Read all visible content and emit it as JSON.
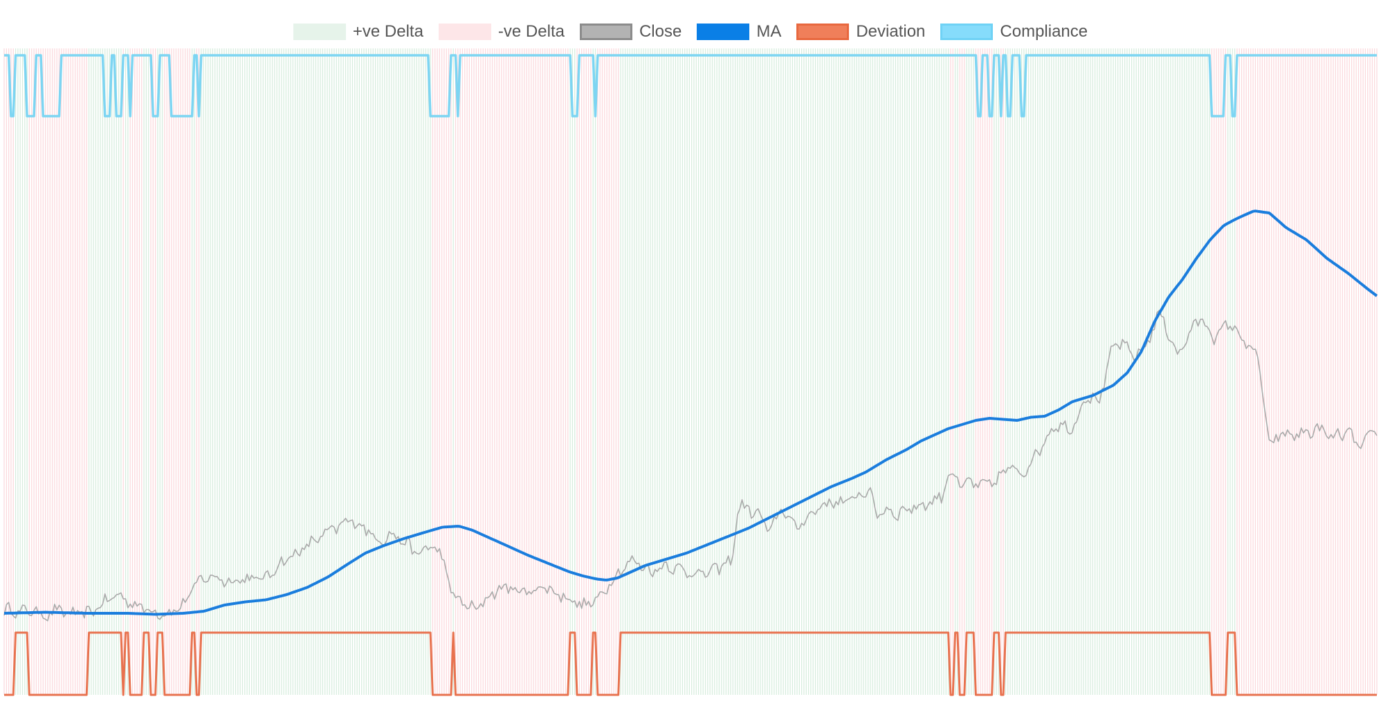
{
  "chart_data": {
    "type": "line",
    "title": "",
    "xlabel": "",
    "ylabel": "",
    "n_points": 600,
    "legend": {
      "position": "top-center",
      "items": [
        {
          "key": "pos",
          "label": "+ve Delta",
          "fill": "#e6f3ea",
          "stroke": "#e6f3ea"
        },
        {
          "key": "neg",
          "label": "-ve Delta",
          "fill": "#fde6e8",
          "stroke": "#fde6e8"
        },
        {
          "key": "close",
          "label": "Close",
          "fill": "#b3b3b3",
          "stroke": "#8c8c8c"
        },
        {
          "key": "ma",
          "label": "MA",
          "fill": "#0a7fe6",
          "stroke": "#0a7fe6"
        },
        {
          "key": "dev",
          "label": "Deviation",
          "fill": "#f07f5a",
          "stroke": "#e8683f"
        },
        {
          "key": "comp",
          "label": "Compliance",
          "fill": "#86dcfb",
          "stroke": "#6fd2f5"
        }
      ]
    },
    "colors": {
      "pos_band": "#d5ecdc",
      "neg_band": "#fbd7db",
      "close": "#a9a9a9",
      "ma": "#1a7ddd",
      "deviation": "#e8724f",
      "compliance": "#7dd5f2"
    },
    "close_keyframes": [
      [
        0,
        2
      ],
      [
        6,
        4
      ],
      [
        12,
        1
      ],
      [
        20,
        3
      ],
      [
        30,
        -2
      ],
      [
        38,
        3
      ],
      [
        50,
        -1
      ],
      [
        62,
        0
      ],
      [
        72,
        10
      ],
      [
        82,
        18
      ],
      [
        95,
        8
      ],
      [
        106,
        3
      ],
      [
        118,
        -1
      ],
      [
        130,
        8
      ],
      [
        140,
        30
      ],
      [
        150,
        36
      ],
      [
        162,
        31
      ],
      [
        175,
        33
      ],
      [
        190,
        34
      ],
      [
        200,
        48
      ],
      [
        215,
        60
      ],
      [
        225,
        70
      ],
      [
        235,
        78
      ],
      [
        245,
        85
      ],
      [
        252,
        90
      ],
      [
        262,
        82
      ],
      [
        272,
        70
      ],
      [
        280,
        76
      ],
      [
        290,
        70
      ],
      [
        300,
        56
      ],
      [
        310,
        66
      ],
      [
        318,
        54
      ],
      [
        325,
        18
      ],
      [
        335,
        8
      ],
      [
        342,
        3
      ],
      [
        350,
        14
      ],
      [
        360,
        25
      ],
      [
        370,
        23
      ],
      [
        380,
        20
      ],
      [
        390,
        26
      ],
      [
        400,
        20
      ],
      [
        410,
        14
      ],
      [
        420,
        7
      ],
      [
        430,
        12
      ],
      [
        440,
        31
      ],
      [
        452,
        48
      ],
      [
        458,
        50
      ],
      [
        470,
        40
      ],
      [
        480,
        47
      ],
      [
        495,
        40
      ],
      [
        510,
        38
      ],
      [
        518,
        44
      ],
      [
        528,
        50
      ],
      [
        533,
        105
      ],
      [
        540,
        100
      ],
      [
        548,
        95
      ],
      [
        555,
        78
      ],
      [
        565,
        103
      ],
      [
        573,
        82
      ],
      [
        580,
        89
      ],
      [
        590,
        101
      ],
      [
        600,
        108
      ],
      [
        608,
        106
      ],
      [
        618,
        112
      ],
      [
        627,
        120
      ],
      [
        633,
        96
      ],
      [
        640,
        100
      ],
      [
        648,
        96
      ],
      [
        653,
        100
      ],
      [
        660,
        102
      ],
      [
        670,
        106
      ],
      [
        680,
        112
      ],
      [
        685,
        135
      ],
      [
        690,
        132
      ],
      [
        695,
        120
      ],
      [
        700,
        128
      ],
      [
        707,
        122
      ],
      [
        720,
        128
      ],
      [
        728,
        140
      ],
      [
        740,
        136
      ],
      [
        755,
        166
      ],
      [
        762,
        182
      ],
      [
        775,
        178
      ],
      [
        785,
        210
      ],
      [
        795,
        205
      ],
      [
        804,
        255
      ],
      [
        811,
        262
      ],
      [
        818,
        248
      ],
      [
        828,
        256
      ],
      [
        838,
        290
      ],
      [
        845,
        270
      ],
      [
        852,
        248
      ],
      [
        860,
        270
      ],
      [
        868,
        285
      ],
      [
        878,
        266
      ],
      [
        890,
        280
      ],
      [
        898,
        265
      ],
      [
        910,
        246
      ],
      [
        918,
        160
      ],
      [
        925,
        172
      ],
      [
        935,
        172
      ],
      [
        945,
        174
      ],
      [
        955,
        178
      ],
      [
        961,
        170
      ],
      [
        966,
        170
      ],
      [
        975,
        175
      ],
      [
        983,
        160
      ],
      [
        990,
        168
      ],
      [
        996,
        178
      ]
    ],
    "ma_keyframes": [
      [
        0,
        0
      ],
      [
        30,
        1
      ],
      [
        60,
        0
      ],
      [
        90,
        0
      ],
      [
        110,
        -1
      ],
      [
        130,
        0
      ],
      [
        145,
        2
      ],
      [
        160,
        8
      ],
      [
        175,
        11
      ],
      [
        190,
        13
      ],
      [
        205,
        18
      ],
      [
        220,
        25
      ],
      [
        235,
        35
      ],
      [
        250,
        48
      ],
      [
        262,
        58
      ],
      [
        275,
        65
      ],
      [
        290,
        72
      ],
      [
        305,
        78
      ],
      [
        318,
        83
      ],
      [
        330,
        84
      ],
      [
        340,
        80
      ],
      [
        350,
        74
      ],
      [
        365,
        65
      ],
      [
        380,
        56
      ],
      [
        395,
        48
      ],
      [
        410,
        40
      ],
      [
        420,
        36
      ],
      [
        430,
        33
      ],
      [
        437,
        32
      ],
      [
        445,
        34
      ],
      [
        455,
        40
      ],
      [
        465,
        46
      ],
      [
        480,
        52
      ],
      [
        495,
        58
      ],
      [
        510,
        66
      ],
      [
        525,
        74
      ],
      [
        540,
        82
      ],
      [
        555,
        92
      ],
      [
        570,
        102
      ],
      [
        585,
        112
      ],
      [
        600,
        122
      ],
      [
        615,
        130
      ],
      [
        625,
        136
      ],
      [
        640,
        148
      ],
      [
        655,
        158
      ],
      [
        665,
        166
      ],
      [
        675,
        172
      ],
      [
        685,
        178
      ],
      [
        695,
        182
      ],
      [
        705,
        186
      ],
      [
        715,
        188
      ],
      [
        725,
        187
      ],
      [
        735,
        186
      ],
      [
        745,
        189
      ],
      [
        755,
        190
      ],
      [
        765,
        196
      ],
      [
        775,
        204
      ],
      [
        790,
        210
      ],
      [
        805,
        220
      ],
      [
        815,
        232
      ],
      [
        825,
        252
      ],
      [
        835,
        282
      ],
      [
        845,
        305
      ],
      [
        855,
        322
      ],
      [
        865,
        342
      ],
      [
        875,
        360
      ],
      [
        885,
        374
      ],
      [
        895,
        381
      ],
      [
        900,
        384
      ],
      [
        907,
        388
      ],
      [
        918,
        386
      ],
      [
        930,
        372
      ],
      [
        945,
        360
      ],
      [
        960,
        342
      ],
      [
        975,
        328
      ],
      [
        990,
        312
      ],
      [
        996,
        306
      ]
    ],
    "deviation_runs": [
      [
        0,
        0
      ],
      [
        8,
        1
      ],
      [
        17,
        0
      ],
      [
        60,
        1
      ],
      [
        85,
        0
      ],
      [
        88,
        1
      ],
      [
        90,
        0
      ],
      [
        100,
        1
      ],
      [
        105,
        0
      ],
      [
        111,
        1
      ],
      [
        115,
        0
      ],
      [
        136,
        1
      ],
      [
        139,
        0
      ],
      [
        142,
        1
      ],
      [
        310,
        0
      ],
      [
        325,
        1
      ],
      [
        327,
        0
      ],
      [
        410,
        1
      ],
      [
        415,
        0
      ],
      [
        426,
        1
      ],
      [
        430,
        0
      ],
      [
        447,
        1
      ],
      [
        686,
        0
      ],
      [
        689,
        1
      ],
      [
        692,
        0
      ],
      [
        697,
        1
      ],
      [
        705,
        0
      ],
      [
        717,
        1
      ],
      [
        723,
        0
      ],
      [
        726,
        1
      ],
      [
        875,
        0
      ],
      [
        887,
        1
      ],
      [
        893,
        0
      ]
    ],
    "compliance_runs": [
      [
        0,
        1
      ],
      [
        4,
        0
      ],
      [
        8,
        1
      ],
      [
        16,
        0
      ],
      [
        23,
        1
      ],
      [
        27,
        0
      ],
      [
        40,
        1
      ],
      [
        73,
        0
      ],
      [
        78,
        1
      ],
      [
        80,
        0
      ],
      [
        86,
        1
      ],
      [
        90,
        0
      ],
      [
        92,
        1
      ],
      [
        108,
        0
      ],
      [
        113,
        1
      ],
      [
        120,
        0
      ],
      [
        137,
        1
      ],
      [
        141,
        0
      ],
      [
        142,
        1
      ],
      [
        308,
        0
      ],
      [
        324,
        1
      ],
      [
        328,
        0
      ],
      [
        330,
        1
      ],
      [
        412,
        0
      ],
      [
        416,
        1
      ],
      [
        428,
        0
      ],
      [
        430,
        1
      ],
      [
        706,
        0
      ],
      [
        710,
        1
      ],
      [
        714,
        0
      ],
      [
        717,
        1
      ],
      [
        722,
        0
      ],
      [
        724,
        1
      ],
      [
        728,
        0
      ],
      [
        731,
        1
      ],
      [
        737,
        0
      ],
      [
        740,
        1
      ],
      [
        876,
        0
      ],
      [
        885,
        1
      ],
      [
        890,
        0
      ],
      [
        893,
        1
      ]
    ],
    "ylim_price": [
      -20,
      425
    ]
  }
}
